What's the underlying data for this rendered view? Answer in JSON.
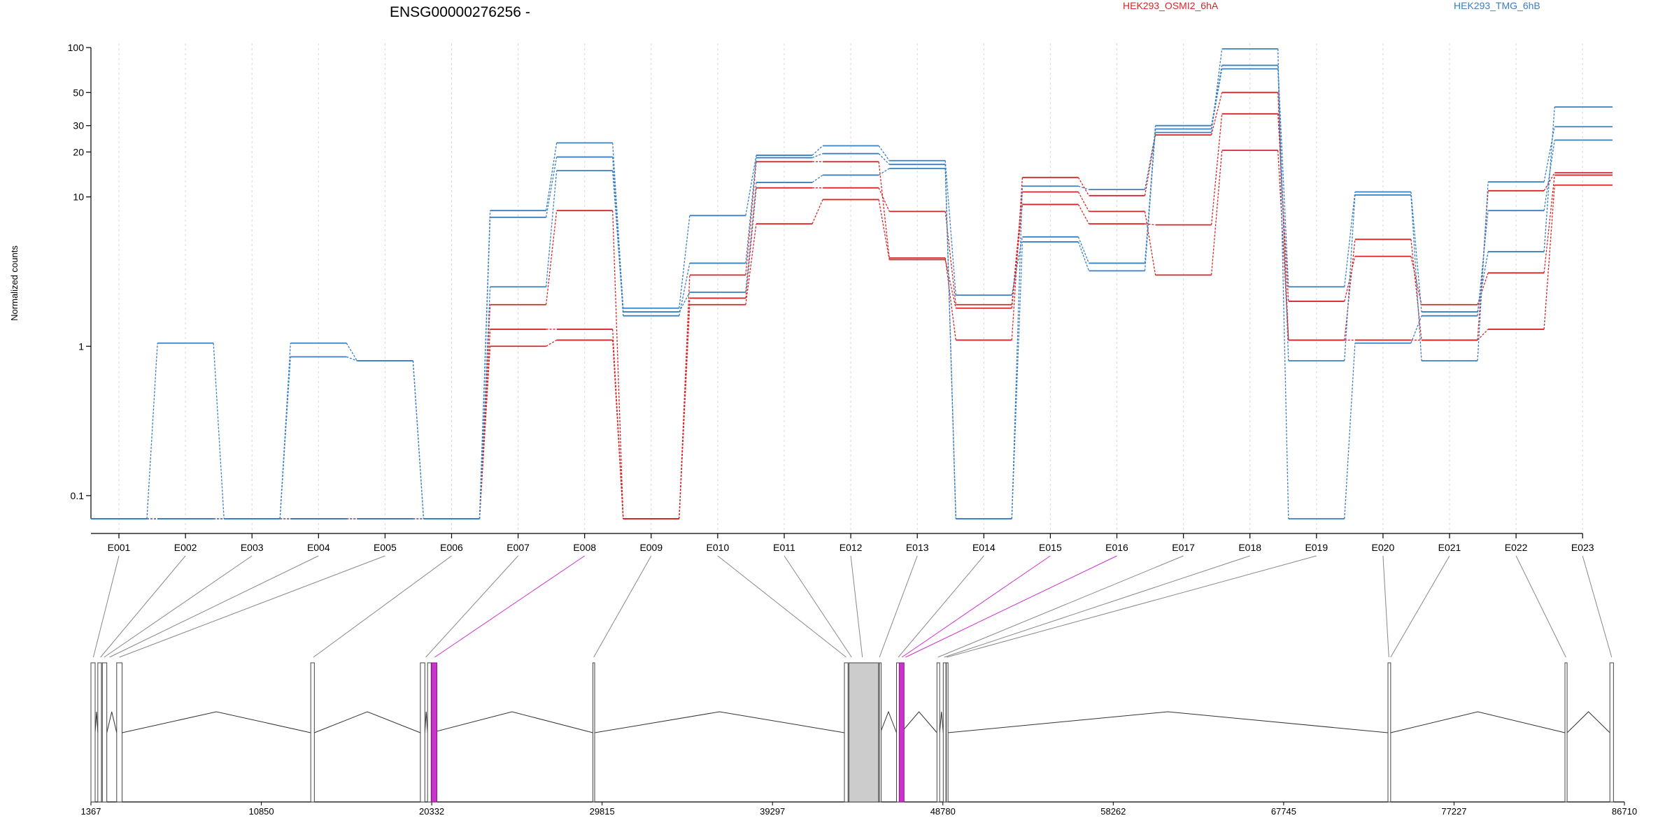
{
  "title": "ENSG00000276256 -",
  "colors": {
    "HEK293_OSMI2_6hA": "#d62728",
    "HEK293_TMG_6hB": "#3a7fc0",
    "highlight": "#cc33cc",
    "gridline": "#d8d8d8",
    "feature_fill": "#cccccc",
    "axis": "#000000"
  },
  "chart_data": {
    "type": "line",
    "title": "ENSG00000276256 -",
    "ylabel": "Normalized counts",
    "yscale": "log",
    "ylim": [
      0.07,
      100
    ],
    "y_ticks": [
      0.1,
      1,
      10,
      20,
      30,
      50,
      100
    ],
    "y_tick_labels": [
      "0.1",
      "1",
      "10",
      "20",
      "30",
      "50",
      "100"
    ],
    "categories": [
      "E001",
      "E002",
      "E003",
      "E004",
      "E005",
      "E006",
      "E007",
      "E008",
      "E009",
      "E010",
      "E011",
      "E012",
      "E013",
      "E014",
      "E015",
      "E016",
      "E017",
      "E018",
      "E019",
      "E020",
      "E021",
      "E022",
      "E023"
    ],
    "legend": [
      {
        "name": "HEK293_OSMI2_6hA",
        "color_key": "HEK293_OSMI2_6hA"
      },
      {
        "name": "HEK293_TMG_6hB",
        "color_key": "HEK293_TMG_6hB"
      }
    ],
    "series": [
      {
        "group": "HEK293_OSMI2_6hA",
        "values": [
          0.07,
          0.07,
          0.07,
          0.07,
          0.07,
          0.07,
          1.9,
          8.1,
          0.07,
          3.0,
          17.2,
          17.2,
          3.9,
          1.1,
          13.5,
          10.2,
          26.0,
          50.0,
          1.1,
          5.2,
          1.1,
          11.0,
          14.5
        ]
      },
      {
        "group": "HEK293_OSMI2_6hA",
        "values": [
          0.07,
          0.07,
          0.07,
          0.07,
          0.07,
          0.07,
          1.3,
          1.3,
          0.07,
          1.9,
          6.6,
          9.6,
          3.8,
          1.8,
          8.9,
          6.6,
          6.5,
          36.0,
          2.0,
          4.0,
          1.9,
          3.1,
          14.0
        ]
      },
      {
        "group": "HEK293_OSMI2_6hA",
        "values": [
          0.07,
          0.07,
          0.07,
          0.07,
          0.07,
          0.07,
          1.0,
          1.1,
          0.07,
          2.1,
          11.5,
          11.5,
          8.0,
          1.9,
          10.8,
          8.0,
          3.0,
          20.5,
          1.1,
          1.1,
          1.1,
          1.3,
          12.0
        ]
      },
      {
        "group": "HEK293_TMG_6hB",
        "values": [
          0.07,
          1.05,
          0.07,
          0.85,
          0.8,
          0.07,
          8.1,
          23.0,
          1.8,
          7.5,
          19.0,
          22.0,
          17.5,
          2.2,
          5.4,
          3.6,
          30.0,
          76.0,
          2.5,
          10.8,
          1.7,
          4.3,
          40.0
        ]
      },
      {
        "group": "HEK293_TMG_6hB",
        "values": [
          0.07,
          0.07,
          0.07,
          0.07,
          0.07,
          0.07,
          7.3,
          18.5,
          1.6,
          3.6,
          18.3,
          19.5,
          16.5,
          0.07,
          5.0,
          3.2,
          28.5,
          72.0,
          0.8,
          10.3,
          0.8,
          12.6,
          29.5
        ]
      },
      {
        "group": "HEK293_TMG_6hB",
        "values": [
          0.07,
          0.07,
          0.07,
          1.05,
          0.8,
          0.07,
          2.5,
          15.0,
          1.7,
          2.3,
          12.5,
          14.0,
          15.5,
          0.07,
          11.8,
          11.2,
          27.0,
          98.0,
          0.07,
          1.05,
          1.6,
          8.1,
          24.0
        ]
      }
    ],
    "gene_model": {
      "coordinate_labels": [
        "1367",
        "10850",
        "20332",
        "29815",
        "39297",
        "48780",
        "58262",
        "67745",
        "77227",
        "86710"
      ],
      "coordinate_ticks": [
        1367,
        10850,
        20332,
        29815,
        39297,
        48780,
        58262,
        67745,
        77227,
        86710
      ],
      "range": [
        1367,
        86710
      ],
      "exon_blocks": [
        {
          "start": 1367,
          "end": 1600
        },
        {
          "start": 1750,
          "end": 1950
        },
        {
          "start": 2000,
          "end": 2250
        },
        {
          "start": 2800,
          "end": 3100
        },
        {
          "start": 13600,
          "end": 13800
        },
        {
          "start": 19700,
          "end": 19950
        },
        {
          "start": 20100,
          "end": 20300
        },
        {
          "start": 29300,
          "end": 29400
        },
        {
          "start": 43300,
          "end": 43500
        },
        {
          "start": 43550,
          "end": 45200
        },
        {
          "start": 45250,
          "end": 45300
        },
        {
          "start": 46200,
          "end": 46450
        },
        {
          "start": 48450,
          "end": 48600
        },
        {
          "start": 48800,
          "end": 48950
        },
        {
          "start": 48970,
          "end": 49050
        },
        {
          "start": 73550,
          "end": 73700
        },
        {
          "start": 83400,
          "end": 83520
        },
        {
          "start": 85900,
          "end": 86100
        }
      ],
      "highlighted_blocks": [
        {
          "start": 20320,
          "end": 20620
        },
        {
          "start": 46350,
          "end": 46620
        }
      ],
      "bin_map": [
        {
          "bin": "E001",
          "pos": 1500
        },
        {
          "bin": "E002",
          "pos": 1900
        },
        {
          "bin": "E003",
          "pos": 2100
        },
        {
          "bin": "E004",
          "pos": 2400
        },
        {
          "bin": "E005",
          "pos": 2950
        },
        {
          "bin": "E006",
          "pos": 13750
        },
        {
          "bin": "E007",
          "pos": 20000
        },
        {
          "bin": "E008",
          "pos": 20500,
          "highlight": true
        },
        {
          "bin": "E009",
          "pos": 29350
        },
        {
          "bin": "E010",
          "pos": 43400
        },
        {
          "bin": "E011",
          "pos": 43700
        },
        {
          "bin": "E012",
          "pos": 44300
        },
        {
          "bin": "E013",
          "pos": 45250
        },
        {
          "bin": "E014",
          "pos": 46300
        },
        {
          "bin": "E015",
          "pos": 46500,
          "highlight": true
        },
        {
          "bin": "E016",
          "pos": 46700,
          "highlight": true
        },
        {
          "bin": "E017",
          "pos": 48500
        },
        {
          "bin": "E018",
          "pos": 48850
        },
        {
          "bin": "E019",
          "pos": 49000
        },
        {
          "bin": "E020",
          "pos": 73600
        },
        {
          "bin": "E021",
          "pos": 73700
        },
        {
          "bin": "E022",
          "pos": 83450
        },
        {
          "bin": "E023",
          "pos": 86000
        }
      ]
    }
  }
}
